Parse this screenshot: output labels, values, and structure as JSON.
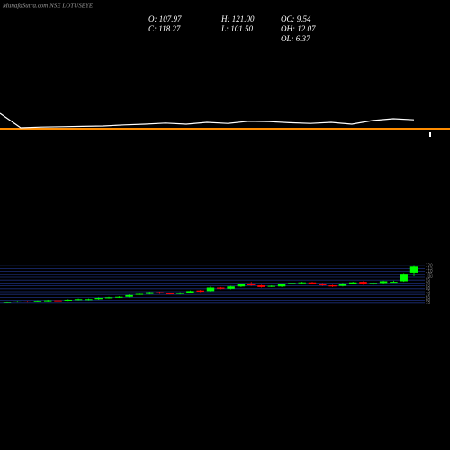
{
  "chart_data": [
    {
      "type": "candlestick",
      "title": "MunafaSutra.com NSE LOTUSEYE",
      "info": [
        "O: 107.97",
        "H: 121.00",
        "OC: 9.54",
        "C: 118.27",
        "L: 101.50",
        "OH: 12.07",
        "OL: 6.37"
      ],
      "open": [
        56,
        57,
        58,
        58,
        59,
        60,
        60,
        61,
        61,
        62,
        64,
        65,
        66,
        70,
        71,
        74,
        72,
        71,
        73,
        77,
        76,
        82,
        80,
        84,
        88,
        86,
        84,
        84,
        88,
        90,
        91,
        89,
        86,
        85,
        89,
        92,
        88,
        90,
        92,
        93,
        107.97
      ],
      "high": [
        58,
        59,
        59,
        60,
        61,
        61,
        62,
        63,
        63,
        65,
        66,
        67,
        70,
        72,
        75,
        75,
        73,
        74,
        77,
        78,
        84,
        83,
        85,
        89,
        92,
        87,
        86,
        89,
        94,
        92,
        92,
        90,
        87,
        90,
        92,
        93,
        91,
        94,
        94,
        107,
        121
      ],
      "low": [
        55,
        56,
        56,
        57,
        58,
        58,
        59,
        60,
        60,
        61,
        63,
        64,
        65,
        69,
        70,
        71,
        70,
        70,
        72,
        74,
        75,
        79,
        79,
        83,
        85,
        82,
        83,
        83,
        87,
        89,
        88,
        85,
        83,
        84,
        88,
        87,
        87,
        89,
        91,
        92,
        101.5
      ],
      "close": [
        57,
        58,
        57,
        59,
        60,
        59,
        61,
        62,
        62,
        64,
        65,
        66,
        69,
        71,
        74,
        72,
        71,
        73,
        76,
        75,
        82,
        80,
        84,
        88,
        86,
        83,
        85,
        88,
        90,
        91,
        89,
        86,
        84,
        89,
        91,
        88,
        90,
        93,
        92,
        106,
        118.27
      ],
      "up_color": "#00ff00",
      "down_color": "#ff0000",
      "ylim": [
        50,
        125
      ],
      "yticks": [
        55,
        60,
        65,
        70,
        75,
        80,
        85,
        90,
        95,
        100,
        105,
        110,
        115,
        120
      ],
      "grid": true
    },
    {
      "type": "line",
      "color": "#ffffff",
      "values": [
        60,
        20,
        22,
        23,
        24,
        25,
        28,
        30,
        33,
        30,
        35,
        32,
        38,
        37,
        34,
        32,
        35,
        30,
        40,
        45,
        42
      ],
      "ylim": [
        0,
        100
      ]
    }
  ]
}
